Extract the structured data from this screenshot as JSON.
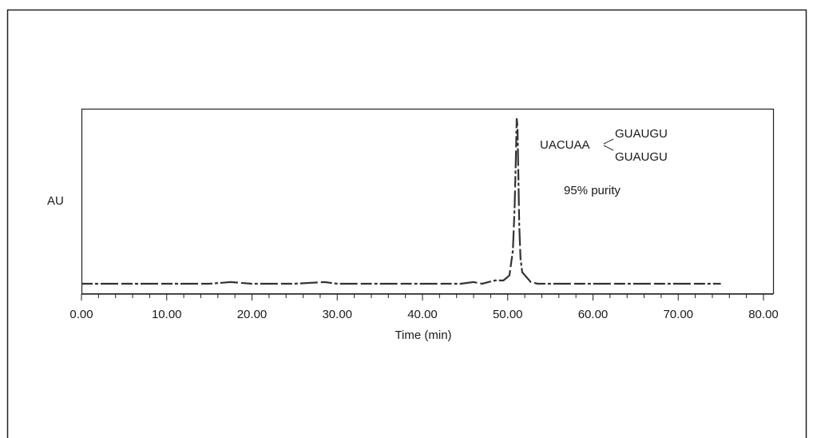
{
  "chart_data": {
    "type": "line",
    "title": "",
    "xlabel": "Time (min)",
    "ylabel": "AU",
    "xlim": [
      0,
      80
    ],
    "ylim": [
      0,
      1
    ],
    "grid": false,
    "x_ticks": [
      0,
      10,
      20,
      30,
      40,
      50,
      60,
      70,
      80
    ],
    "x_tick_labels": [
      "0.00",
      "10.00",
      "20.00",
      "30.00",
      "40.00",
      "50.00",
      "60.00",
      "70.00",
      "80.00"
    ],
    "annotations": {
      "sequence_left": "UACUAA",
      "sequence_top": "GUAUGU",
      "sequence_bottom": "GUAUGU",
      "purity": "95% purity"
    },
    "series": [
      {
        "values": [
          [
            0,
            0.0
          ],
          [
            5,
            0.0
          ],
          [
            10,
            0.0
          ],
          [
            15,
            0.0
          ],
          [
            17.5,
            0.01
          ],
          [
            20,
            0.0
          ],
          [
            25,
            0.0
          ],
          [
            28.5,
            0.01
          ],
          [
            30,
            0.0
          ],
          [
            33,
            0.0
          ],
          [
            36,
            0.0
          ],
          [
            38,
            0.0
          ],
          [
            40,
            0.0
          ],
          [
            41,
            0.0
          ],
          [
            44.5,
            0.0
          ],
          [
            46,
            0.01
          ],
          [
            47,
            0.0
          ],
          [
            48.5,
            0.02
          ],
          [
            49.5,
            0.02
          ],
          [
            50.2,
            0.05
          ],
          [
            50.6,
            0.2
          ],
          [
            50.8,
            0.45
          ],
          [
            50.95,
            0.75
          ],
          [
            51.05,
            1.0
          ],
          [
            51.15,
            0.95
          ],
          [
            51.25,
            0.65
          ],
          [
            51.35,
            0.35
          ],
          [
            51.5,
            0.15
          ],
          [
            51.7,
            0.07
          ],
          [
            52.2,
            0.04
          ],
          [
            52.7,
            0.01
          ],
          [
            53.5,
            0.0
          ],
          [
            67.5,
            0.0
          ],
          [
            71,
            0.0
          ],
          [
            73,
            0.0
          ],
          [
            75,
            0.0
          ]
        ]
      }
    ]
  }
}
